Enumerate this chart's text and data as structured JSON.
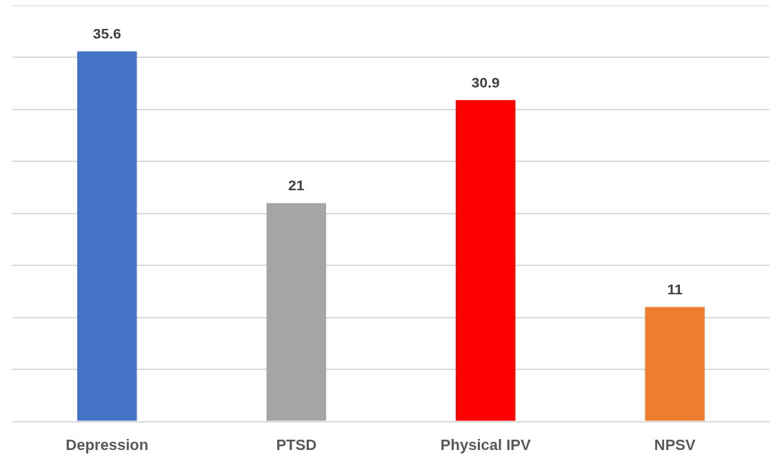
{
  "chart_data": {
    "type": "bar",
    "categories": [
      "Depression",
      "PTSD",
      "Physical IPV",
      "NPSV"
    ],
    "values": [
      35.6,
      21,
      30.9,
      11
    ],
    "colors": [
      "#4472c4",
      "#a5a5a5",
      "#ff0000",
      "#ed7d31"
    ],
    "ylim": [
      0,
      40
    ],
    "yticks": [
      {
        "value": 0,
        "label": null
      },
      {
        "value": 5,
        "label": null
      },
      {
        "value": 10,
        "label": null
      },
      {
        "value": 15,
        "label": null
      },
      {
        "value": 20,
        "label": null
      },
      {
        "value": 25,
        "label": null
      },
      {
        "value": 30,
        "label": null
      },
      {
        "value": 35,
        "label": null
      },
      {
        "value": 40,
        "label": null
      }
    ],
    "grid": "y",
    "tick_labels": "x",
    "data_labels": true,
    "legend": false
  }
}
